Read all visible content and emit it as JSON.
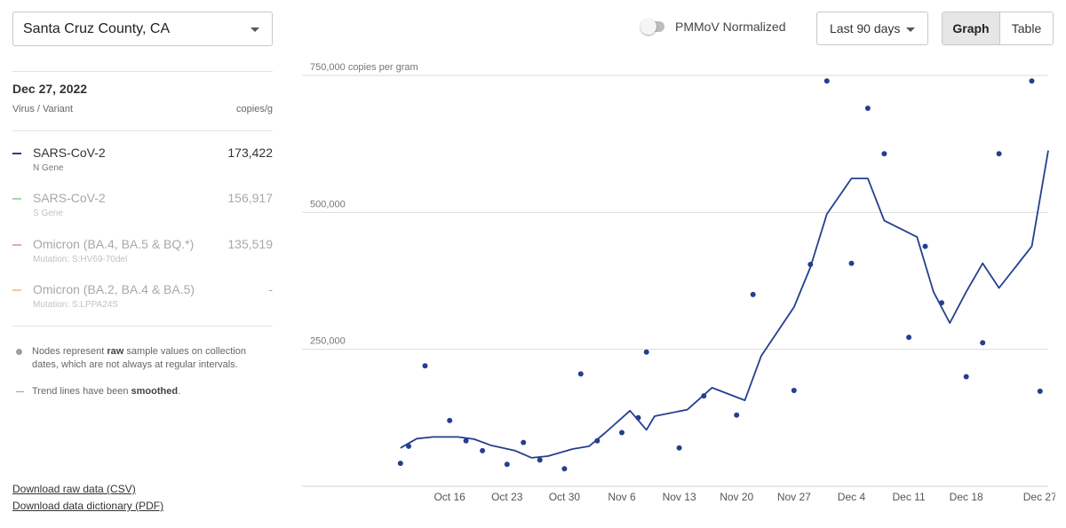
{
  "header": {
    "location": "Santa Cruz County, CA",
    "toggle_label": "PMMoV Normalized",
    "range": "Last 90 days",
    "view_graph": "Graph",
    "view_table": "Table"
  },
  "sidebar": {
    "date": "Dec 27, 2022",
    "col_virus": "Virus / Variant",
    "col_unit": "copies/g",
    "rows": [
      {
        "name": "SARS-CoV-2",
        "sub": "N Gene",
        "value": "173,422",
        "color": "#253f8e",
        "active": true
      },
      {
        "name": "SARS-CoV-2",
        "sub": "S Gene",
        "value": "156,917",
        "color": "#a5d6a7",
        "active": false
      },
      {
        "name": "Omicron (BA.4, BA.5 & BQ.*)",
        "sub": "Mutation: S:HV69-70del",
        "value": "135,519",
        "color": "#e6a4b4",
        "active": false
      },
      {
        "name": "Omicron (BA.2, BA.4 & BA.5)",
        "sub": "Mutation: S:LPPA24S",
        "value": "-",
        "color": "#f5c99b",
        "active": false
      }
    ],
    "note_raw_pre": "Nodes represent ",
    "note_raw_bold": "raw",
    "note_raw_post": " sample values on collection dates, which are not always at regular intervals.",
    "note_trend_pre": "Trend lines have been ",
    "note_trend_bold": "smoothed",
    "note_trend_post": ".",
    "link_csv": "Download raw data (CSV)",
    "link_pdf": "Download data dictionary (PDF)"
  },
  "chart_data": {
    "type": "line",
    "ylabel": "copies per gram",
    "ylim": [
      0,
      750000
    ],
    "y_ticks": [
      {
        "value": 250000,
        "label": "250,000"
      },
      {
        "value": 500000,
        "label": "500,000"
      },
      {
        "value": 750000,
        "label": "750,000 copies per gram"
      }
    ],
    "x_start": "2022-09-28",
    "x_end": "2022-12-28",
    "x_ticks": [
      {
        "date": "2022-10-16",
        "label": "Oct 16"
      },
      {
        "date": "2022-10-23",
        "label": "Oct 23"
      },
      {
        "date": "2022-10-30",
        "label": "Oct 30"
      },
      {
        "date": "2022-11-06",
        "label": "Nov 6"
      },
      {
        "date": "2022-11-13",
        "label": "Nov 13"
      },
      {
        "date": "2022-11-20",
        "label": "Nov 20"
      },
      {
        "date": "2022-11-27",
        "label": "Nov 27"
      },
      {
        "date": "2022-12-04",
        "label": "Dec 4"
      },
      {
        "date": "2022-12-11",
        "label": "Dec 11"
      },
      {
        "date": "2022-12-18",
        "label": "Dec 18"
      },
      {
        "date": "2022-12-27",
        "label": "Dec 27"
      }
    ],
    "grid": "horizontal",
    "series": [
      {
        "name": "SARS-CoV-2",
        "color": "#253f8e",
        "points": [
          {
            "x": "2022-10-10",
            "y": 42000
          },
          {
            "x": "2022-10-11",
            "y": 73000
          },
          {
            "x": "2022-10-13",
            "y": 220000
          },
          {
            "x": "2022-10-16",
            "y": 120000
          },
          {
            "x": "2022-10-18",
            "y": 83000
          },
          {
            "x": "2022-10-20",
            "y": 65000
          },
          {
            "x": "2022-10-23",
            "y": 40000
          },
          {
            "x": "2022-10-25",
            "y": 80000
          },
          {
            "x": "2022-10-27",
            "y": 48000
          },
          {
            "x": "2022-10-30",
            "y": 32000
          },
          {
            "x": "2022-11-01",
            "y": 205000
          },
          {
            "x": "2022-11-03",
            "y": 83000
          },
          {
            "x": "2022-11-06",
            "y": 98000
          },
          {
            "x": "2022-11-08",
            "y": 125000
          },
          {
            "x": "2022-11-09",
            "y": 245000
          },
          {
            "x": "2022-11-13",
            "y": 70000
          },
          {
            "x": "2022-11-16",
            "y": 165000
          },
          {
            "x": "2022-11-20",
            "y": 130000
          },
          {
            "x": "2022-11-22",
            "y": 350000
          },
          {
            "x": "2022-11-27",
            "y": 175000
          },
          {
            "x": "2022-11-29",
            "y": 405000
          },
          {
            "x": "2022-12-01",
            "y": 740000
          },
          {
            "x": "2022-12-04",
            "y": 407000
          },
          {
            "x": "2022-12-06",
            "y": 690000
          },
          {
            "x": "2022-12-08",
            "y": 607000
          },
          {
            "x": "2022-12-11",
            "y": 272000
          },
          {
            "x": "2022-12-13",
            "y": 438000
          },
          {
            "x": "2022-12-15",
            "y": 335000
          },
          {
            "x": "2022-12-18",
            "y": 200000
          },
          {
            "x": "2022-12-20",
            "y": 262000
          },
          {
            "x": "2022-12-22",
            "y": 607000
          },
          {
            "x": "2022-12-26",
            "y": 740000
          },
          {
            "x": "2022-12-27",
            "y": 173422
          }
        ],
        "trend": [
          {
            "x": "2022-10-10",
            "y": 70000
          },
          {
            "x": "2022-10-12",
            "y": 87000
          },
          {
            "x": "2022-10-14",
            "y": 90000
          },
          {
            "x": "2022-10-17",
            "y": 90000
          },
          {
            "x": "2022-10-19",
            "y": 86000
          },
          {
            "x": "2022-10-21",
            "y": 75000
          },
          {
            "x": "2022-10-24",
            "y": 65000
          },
          {
            "x": "2022-10-26",
            "y": 52000
          },
          {
            "x": "2022-10-28",
            "y": 55000
          },
          {
            "x": "2022-10-31",
            "y": 68000
          },
          {
            "x": "2022-11-02",
            "y": 73000
          },
          {
            "x": "2022-11-04",
            "y": 98000
          },
          {
            "x": "2022-11-07",
            "y": 138000
          },
          {
            "x": "2022-11-09",
            "y": 103000
          },
          {
            "x": "2022-11-10",
            "y": 128000
          },
          {
            "x": "2022-11-14",
            "y": 140000
          },
          {
            "x": "2022-11-17",
            "y": 180000
          },
          {
            "x": "2022-11-21",
            "y": 157000
          },
          {
            "x": "2022-11-23",
            "y": 238000
          },
          {
            "x": "2022-11-27",
            "y": 327000
          },
          {
            "x": "2022-11-29",
            "y": 400000
          },
          {
            "x": "2022-12-01",
            "y": 497000
          },
          {
            "x": "2022-12-04",
            "y": 562000
          },
          {
            "x": "2022-12-06",
            "y": 562000
          },
          {
            "x": "2022-12-08",
            "y": 485000
          },
          {
            "x": "2022-12-12",
            "y": 455000
          },
          {
            "x": "2022-12-14",
            "y": 355000
          },
          {
            "x": "2022-12-16",
            "y": 298000
          },
          {
            "x": "2022-12-18",
            "y": 355000
          },
          {
            "x": "2022-12-20",
            "y": 407000
          },
          {
            "x": "2022-12-22",
            "y": 362000
          },
          {
            "x": "2022-12-26",
            "y": 438000
          },
          {
            "x": "2022-12-28",
            "y": 613000
          }
        ]
      }
    ]
  }
}
